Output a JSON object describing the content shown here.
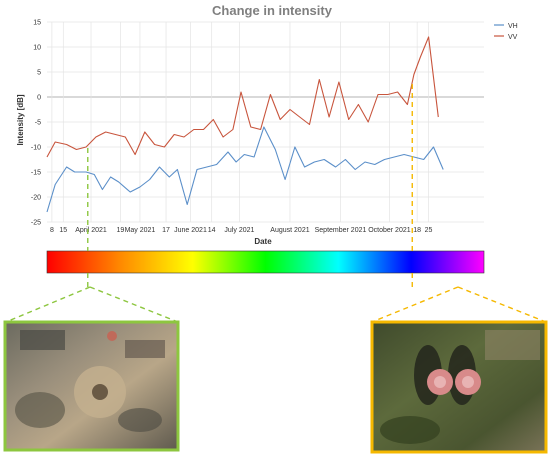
{
  "chart_data": {
    "type": "line",
    "title": "Change in intensity",
    "xlabel": "Date",
    "ylabel": "Intensity [dB]",
    "ylim": [
      -25,
      15
    ],
    "yticks": [
      -25,
      -20,
      -15,
      -10,
      -5,
      0,
      5,
      10,
      15
    ],
    "xlim": [
      "2021-03-05",
      "2021-11-28"
    ],
    "xticks": [
      {
        "date": "2021-03-08",
        "label": "8"
      },
      {
        "date": "2021-03-15",
        "label": "15"
      },
      {
        "date": "2021-04-01",
        "label": "April 2021"
      },
      {
        "date": "2021-04-19",
        "label": "19"
      },
      {
        "date": "2021-05-01",
        "label": "May 2021"
      },
      {
        "date": "2021-05-17",
        "label": "17"
      },
      {
        "date": "2021-06-01",
        "label": "June 2021"
      },
      {
        "date": "2021-06-14",
        "label": "14"
      },
      {
        "date": "2021-07-01",
        "label": "July 2021"
      },
      {
        "date": "2021-08-01",
        "label": "August 2021"
      },
      {
        "date": "2021-09-01",
        "label": "September 2021"
      },
      {
        "date": "2021-10-01",
        "label": "October 2021"
      },
      {
        "date": "2021-10-18",
        "label": "18"
      },
      {
        "date": "2021-10-25",
        "label": "25"
      }
    ],
    "grid": true,
    "legend_position": "top-right",
    "colorbar": [
      "#ff0000",
      "#ff8800",
      "#ffff00",
      "#00ff00",
      "#00ffff",
      "#0000ff",
      "#ff00ff"
    ],
    "markers": [
      {
        "date": "2021-03-30",
        "color": "#8dc63f"
      },
      {
        "date": "2021-10-15",
        "color": "#f5b800"
      }
    ],
    "series": [
      {
        "name": "VH",
        "color": "#5b8fc9",
        "points": [
          [
            "2021-03-05",
            -23
          ],
          [
            "2021-03-10",
            -17.5
          ],
          [
            "2021-03-17",
            -14
          ],
          [
            "2021-03-22",
            -15
          ],
          [
            "2021-03-29",
            -15
          ],
          [
            "2021-04-03",
            -15.5
          ],
          [
            "2021-04-08",
            -18.5
          ],
          [
            "2021-04-13",
            -16
          ],
          [
            "2021-04-18",
            -17
          ],
          [
            "2021-04-25",
            -19
          ],
          [
            "2021-05-01",
            -18
          ],
          [
            "2021-05-07",
            -16.5
          ],
          [
            "2021-05-13",
            -14
          ],
          [
            "2021-05-19",
            -16
          ],
          [
            "2021-05-24",
            -14.5
          ],
          [
            "2021-05-30",
            -21.5
          ],
          [
            "2021-06-05",
            -14.5
          ],
          [
            "2021-06-11",
            -14
          ],
          [
            "2021-06-17",
            -13.5
          ],
          [
            "2021-06-24",
            -11
          ],
          [
            "2021-06-29",
            -13
          ],
          [
            "2021-07-04",
            -11.5
          ],
          [
            "2021-07-10",
            -12
          ],
          [
            "2021-07-16",
            -6
          ],
          [
            "2021-07-23",
            -10.5
          ],
          [
            "2021-07-29",
            -16.5
          ],
          [
            "2021-08-04",
            -10
          ],
          [
            "2021-08-10",
            -14
          ],
          [
            "2021-08-16",
            -13
          ],
          [
            "2021-08-22",
            -12.5
          ],
          [
            "2021-08-29",
            -14
          ],
          [
            "2021-09-04",
            -12.5
          ],
          [
            "2021-09-10",
            -14.5
          ],
          [
            "2021-09-16",
            -13
          ],
          [
            "2021-09-22",
            -13.5
          ],
          [
            "2021-09-28",
            -12.5
          ],
          [
            "2021-10-04",
            -12
          ],
          [
            "2021-10-10",
            -11.5
          ],
          [
            "2021-10-16",
            -12
          ],
          [
            "2021-10-22",
            -12.5
          ],
          [
            "2021-10-28",
            -10
          ],
          [
            "2021-11-03",
            -14.5
          ]
        ]
      },
      {
        "name": "VV",
        "color": "#c8553d",
        "points": [
          [
            "2021-03-05",
            -12
          ],
          [
            "2021-03-10",
            -9
          ],
          [
            "2021-03-17",
            -9.5
          ],
          [
            "2021-03-23",
            -10.5
          ],
          [
            "2021-03-29",
            -10
          ],
          [
            "2021-04-04",
            -8
          ],
          [
            "2021-04-10",
            -7
          ],
          [
            "2021-04-16",
            -7.5
          ],
          [
            "2021-04-22",
            -8
          ],
          [
            "2021-04-28",
            -11.5
          ],
          [
            "2021-05-04",
            -7
          ],
          [
            "2021-05-10",
            -9.5
          ],
          [
            "2021-05-16",
            -10
          ],
          [
            "2021-05-22",
            -7.5
          ],
          [
            "2021-05-28",
            -8
          ],
          [
            "2021-06-03",
            -6.5
          ],
          [
            "2021-06-09",
            -6.5
          ],
          [
            "2021-06-15",
            -4.5
          ],
          [
            "2021-06-21",
            -8
          ],
          [
            "2021-06-27",
            -6.5
          ],
          [
            "2021-07-02",
            1
          ],
          [
            "2021-07-08",
            -6
          ],
          [
            "2021-07-14",
            -6.5
          ],
          [
            "2021-07-20",
            0.5
          ],
          [
            "2021-07-26",
            -4.5
          ],
          [
            "2021-08-01",
            -2.5
          ],
          [
            "2021-08-07",
            -4
          ],
          [
            "2021-08-13",
            -5.5
          ],
          [
            "2021-08-19",
            3.5
          ],
          [
            "2021-08-25",
            -4
          ],
          [
            "2021-08-31",
            3
          ],
          [
            "2021-09-06",
            -4.5
          ],
          [
            "2021-09-12",
            -1.5
          ],
          [
            "2021-09-18",
            -5
          ],
          [
            "2021-09-24",
            0.5
          ],
          [
            "2021-09-30",
            0.5
          ],
          [
            "2021-10-06",
            1
          ],
          [
            "2021-10-12",
            -1.5
          ],
          [
            "2021-10-16",
            4.5
          ],
          [
            "2021-10-20",
            8
          ],
          [
            "2021-10-25",
            12
          ],
          [
            "2021-10-31",
            -4
          ]
        ]
      }
    ]
  }
}
